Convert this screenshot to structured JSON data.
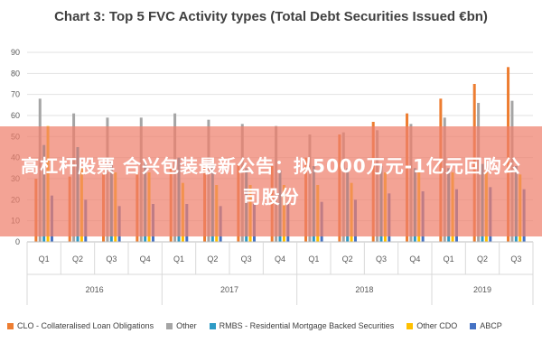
{
  "chart_data": {
    "type": "bar",
    "title": "Chart 3: Top 5 FVC Activity types (Total Debt Securities Issued €bn)",
    "ylim": [
      0,
      90
    ],
    "yticks": [
      0,
      10,
      20,
      30,
      40,
      50,
      60,
      70,
      80,
      90
    ],
    "grid": true,
    "legend_position": "bottom",
    "categories": [
      "Q1",
      "Q2",
      "Q3",
      "Q4",
      "Q1",
      "Q2",
      "Q3",
      "Q4",
      "Q1",
      "Q2",
      "Q3",
      "Q4",
      "Q1",
      "Q2",
      "Q3"
    ],
    "groups": [
      {
        "label": "2016",
        "count": 4
      },
      {
        "label": "2017",
        "count": 4
      },
      {
        "label": "2018",
        "count": 4
      },
      {
        "label": "2019",
        "count": 3
      }
    ],
    "series": [
      {
        "name": "CLO - Collateralised Loan Obligations",
        "color": "#ED7D31",
        "values": [
          30,
          31,
          33,
          33,
          35,
          36,
          37,
          36,
          40,
          51,
          57,
          61,
          68,
          75,
          83
        ]
      },
      {
        "name": "Other",
        "color": "#A5A5A5",
        "values": [
          68,
          61,
          59,
          59,
          61,
          58,
          56,
          55,
          51,
          52,
          53,
          56,
          59,
          66,
          67
        ]
      },
      {
        "name": "RMBS - Residential Mortgage Backed Securities",
        "color": "#2E9BC6",
        "values": [
          46,
          45,
          38,
          38,
          40,
          37,
          35,
          34,
          36,
          35,
          36,
          35,
          35,
          37,
          36
        ]
      },
      {
        "name": "Other CDO",
        "color": "#FFC000",
        "values": [
          55,
          35,
          33,
          33,
          28,
          27,
          27,
          27,
          27,
          28,
          33,
          33,
          33,
          33,
          32
        ]
      },
      {
        "name": "ABCP",
        "color": "#4472C4",
        "values": [
          22,
          20,
          17,
          18,
          18,
          17,
          18,
          18,
          19,
          20,
          23,
          24,
          25,
          26,
          25
        ]
      }
    ]
  },
  "overlay": {
    "text": "高杠杆股票 合兴包装最新公告：拟5000万元-1亿元回购公司股份"
  }
}
